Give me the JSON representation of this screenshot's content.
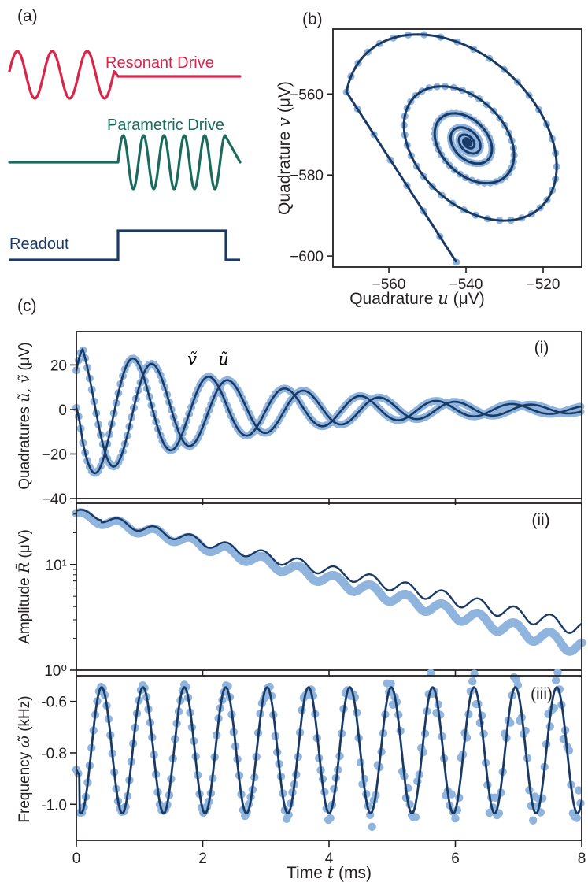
{
  "colors": {
    "data_point": "#8fb4de",
    "fit_line": "#1a3a66",
    "resonant": "#d9254a",
    "parametric": "#1a6b5e",
    "readout": "#1a3a66",
    "axis": "#231f20"
  },
  "panel_a": {
    "label": "(a)",
    "resonant_label": "Resonant Drive",
    "parametric_label": "Parametric Drive",
    "readout_label": "Readout"
  },
  "chart_data": [
    {
      "id": "b",
      "type": "scatter",
      "panel_label": "(b)",
      "xlabel_pre": "Quadrature ",
      "xlabel_var": "u",
      "xlabel_unit": " (μV)",
      "ylabel_pre": "Quadrature ",
      "ylabel_var": "v",
      "ylabel_unit": " (μV)",
      "xlim": [
        -574.5,
        -510
      ],
      "ylim": [
        -602.7,
        -544
      ],
      "xticks": [
        -560,
        -540,
        -520
      ],
      "yticks": [
        -560,
        -580,
        -600
      ],
      "xtick_labels": [
        "−560",
        "−540",
        "−520"
      ],
      "ytick_labels": [
        "−560",
        "−580",
        "−600"
      ],
      "spiral": {
        "center": [
          -539.5,
          -572
        ],
        "start": [
          -542.5,
          -601.5
        ],
        "rx0": 30.5,
        "ry0": 26,
        "tilt_deg": 35,
        "decay_per_rev": 0.52,
        "revolutions": 7.5
      }
    },
    {
      "id": "c_i",
      "type": "line",
      "subpanel_label": "(i)",
      "ylabel_pre": "Quadratures ",
      "ylabel_var": "ũ, ṽ",
      "ylabel_unit": " (μV)",
      "xlim": [
        0,
        8
      ],
      "ylim": [
        -40,
        35
      ],
      "yticks": [
        20,
        0,
        -20,
        -40
      ],
      "ytick_labels": [
        "20",
        "0",
        "−20",
        "−40"
      ],
      "series": [
        {
          "name": "ṽ",
          "amplitude": 32,
          "decay_ms": 2.7,
          "period_ms": 1.2,
          "phase": 0.2
        },
        {
          "name": "ũ",
          "amplitude": 32,
          "decay_ms": 2.7,
          "period_ms": 1.2,
          "phase": -1.35
        }
      ]
    },
    {
      "id": "c_ii",
      "type": "line",
      "subpanel_label": "(ii)",
      "ylabel_pre": "Amplitude ",
      "ylabel_var": "R̃",
      "ylabel_unit": " (μV)",
      "scale": "log",
      "xlim": [
        0,
        8
      ],
      "ylim": [
        1,
        38
      ],
      "yticks": [
        10,
        1
      ],
      "ytick_labels": [
        "10¹",
        "10⁰"
      ],
      "envelope": {
        "start_value": 31,
        "end_value_fit": 2.5,
        "end_value_data": 1.6,
        "ripple_period_ms": 0.57
      }
    },
    {
      "id": "c_iii",
      "type": "line",
      "subpanel_label": "(iii)",
      "ylabel_pre": "Frequency ",
      "ylabel_var": "ω̃",
      "ylabel_unit": " (kHz)",
      "xlim": [
        0,
        8
      ],
      "ylim": [
        -1.14,
        -0.5
      ],
      "yticks": [
        -0.6,
        -0.8,
        -1.0
      ],
      "ytick_labels": [
        "-0.6",
        "-0.8",
        "-1.0"
      ],
      "xticks": [
        0,
        2,
        4,
        6,
        8
      ],
      "xtick_labels": [
        "0",
        "2",
        "4",
        "6",
        "8"
      ],
      "xlabel_pre": "Time ",
      "xlabel_var": "t",
      "xlabel_unit": " (ms)",
      "oscillation": {
        "period_ms": 0.655,
        "max": -0.545,
        "min": -1.035,
        "first_peak_ms": 0.4
      }
    }
  ],
  "panel_c": {
    "label": "(c)"
  }
}
